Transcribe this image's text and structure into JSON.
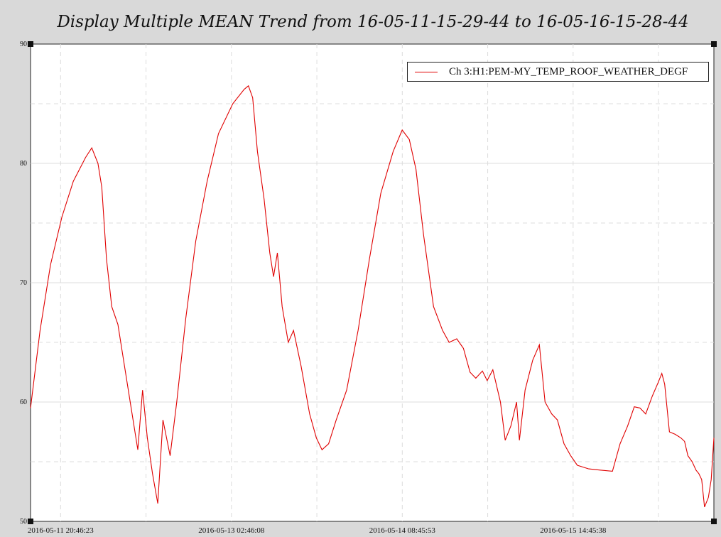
{
  "chart_data": {
    "type": "line",
    "title": "Display Multiple MEAN Trend from 16-05-11-15-29-44 to 16-05-16-15-28-44",
    "xlabel": "",
    "ylabel": "",
    "xlim": [
      "2016-05-11 15:29:44",
      "2016-05-16 15:28:44"
    ],
    "ylim": [
      50,
      90
    ],
    "y_ticks": [
      "50",
      "60",
      "70",
      "80",
      "90"
    ],
    "x_ticks": [
      {
        "label": "2016-05-11 20:46:23",
        "t": "2016-05-11 20:46:23"
      },
      {
        "label": "2016-05-13 02:46:08",
        "t": "2016-05-13 02:46:08"
      },
      {
        "label": "2016-05-14 08:45:53",
        "t": "2016-05-14 08:45:53"
      },
      {
        "label": "2016-05-15 14:45:38",
        "t": "2016-05-15 14:45:38"
      }
    ],
    "grid": true,
    "legend_position": "top-right",
    "series": [
      {
        "name": "Ch 3:H1:PEM-MY_TEMP_ROOF_WEATHER_DEGF",
        "color": "#e00000",
        "points": [
          [
            "2016-05-11 15:29:44",
            59.5
          ],
          [
            "2016-05-11 17:10:00",
            66.0
          ],
          [
            "2016-05-11 19:00:00",
            71.5
          ],
          [
            "2016-05-11 21:00:00",
            75.5
          ],
          [
            "2016-05-11 23:00:00",
            78.5
          ],
          [
            "2016-05-12 01:10:00",
            80.5
          ],
          [
            "2016-05-12 02:15:00",
            81.3
          ],
          [
            "2016-05-12 03:20:00",
            80.0
          ],
          [
            "2016-05-12 04:00:00",
            78.0
          ],
          [
            "2016-05-12 04:50:00",
            72.0
          ],
          [
            "2016-05-12 05:45:00",
            68.0
          ],
          [
            "2016-05-12 06:50:00",
            66.5
          ],
          [
            "2016-05-12 08:00:00",
            63.0
          ],
          [
            "2016-05-12 09:00:00",
            60.0
          ],
          [
            "2016-05-12 10:20:00",
            56.0
          ],
          [
            "2016-05-12 11:10:00",
            61.0
          ],
          [
            "2016-05-12 12:00:00",
            57.0
          ],
          [
            "2016-05-12 12:55:00",
            54.0
          ],
          [
            "2016-05-12 13:50:00",
            51.5
          ],
          [
            "2016-05-12 14:45:00",
            58.5
          ],
          [
            "2016-05-12 16:00:00",
            55.5
          ],
          [
            "2016-05-12 17:10:00",
            60.0
          ],
          [
            "2016-05-12 18:45:00",
            67.0
          ],
          [
            "2016-05-12 20:30:00",
            73.5
          ],
          [
            "2016-05-12 22:30:00",
            78.5
          ],
          [
            "2016-05-13 00:30:00",
            82.5
          ],
          [
            "2016-05-13 03:00:00",
            85.0
          ],
          [
            "2016-05-13 05:00:00",
            86.2
          ],
          [
            "2016-05-13 05:45:00",
            86.5
          ],
          [
            "2016-05-13 06:30:00",
            85.5
          ],
          [
            "2016-05-13 07:20:00",
            81.0
          ],
          [
            "2016-05-13 08:30:00",
            77.0
          ],
          [
            "2016-05-13 09:30:00",
            72.5
          ],
          [
            "2016-05-13 10:10:00",
            70.5
          ],
          [
            "2016-05-13 10:50:00",
            72.5
          ],
          [
            "2016-05-13 11:40:00",
            68.0
          ],
          [
            "2016-05-13 12:45:00",
            65.0
          ],
          [
            "2016-05-13 13:40:00",
            66.0
          ],
          [
            "2016-05-13 15:00:00",
            63.0
          ],
          [
            "2016-05-13 16:30:00",
            59.0
          ],
          [
            "2016-05-13 17:40:00",
            57.0
          ],
          [
            "2016-05-13 18:40:00",
            56.0
          ],
          [
            "2016-05-13 19:50:00",
            56.5
          ],
          [
            "2016-05-13 21:10:00",
            58.5
          ],
          [
            "2016-05-13 23:00:00",
            61.0
          ],
          [
            "2016-05-14 01:00:00",
            66.0
          ],
          [
            "2016-05-14 03:00:00",
            72.0
          ],
          [
            "2016-05-14 05:00:00",
            77.5
          ],
          [
            "2016-05-14 07:10:00",
            81.0
          ],
          [
            "2016-05-14 08:45:00",
            82.8
          ],
          [
            "2016-05-14 10:00:00",
            82.0
          ],
          [
            "2016-05-14 11:10:00",
            79.5
          ],
          [
            "2016-05-14 12:30:00",
            74.0
          ],
          [
            "2016-05-14 14:15:00",
            68.0
          ],
          [
            "2016-05-14 15:50:00",
            66.0
          ],
          [
            "2016-05-14 17:00:00",
            65.0
          ],
          [
            "2016-05-14 18:20:00",
            65.3
          ],
          [
            "2016-05-14 19:30:00",
            64.5
          ],
          [
            "2016-05-14 20:40:00",
            62.5
          ],
          [
            "2016-05-14 21:40:00",
            62.0
          ],
          [
            "2016-05-14 22:50:00",
            62.6
          ],
          [
            "2016-05-14 23:40:00",
            61.8
          ],
          [
            "2016-05-15 00:40:00",
            62.7
          ],
          [
            "2016-05-15 02:00:00",
            60.0
          ],
          [
            "2016-05-15 02:50:00",
            56.8
          ],
          [
            "2016-05-15 03:50:00",
            58.0
          ],
          [
            "2016-05-15 04:50:00",
            60.0
          ],
          [
            "2016-05-15 05:20:00",
            56.8
          ],
          [
            "2016-05-15 06:20:00",
            61.0
          ],
          [
            "2016-05-15 07:40:00",
            63.5
          ],
          [
            "2016-05-15 08:50:00",
            64.8
          ],
          [
            "2016-05-15 09:50:00",
            60.0
          ],
          [
            "2016-05-15 11:00:00",
            59.0
          ],
          [
            "2016-05-15 12:00:00",
            58.5
          ],
          [
            "2016-05-15 13:10:00",
            56.5
          ],
          [
            "2016-05-15 14:20:00",
            55.5
          ],
          [
            "2016-05-15 15:30:00",
            54.7
          ],
          [
            "2016-05-15 17:30:00",
            54.4
          ],
          [
            "2016-05-15 19:30:00",
            54.3
          ],
          [
            "2016-05-15 21:40:00",
            54.2
          ],
          [
            "2016-05-15 23:00:00",
            56.5
          ],
          [
            "2016-05-16 00:20:00",
            58.0
          ],
          [
            "2016-05-16 01:30:00",
            59.6
          ],
          [
            "2016-05-16 02:30:00",
            59.5
          ],
          [
            "2016-05-16 03:30:00",
            59.0
          ],
          [
            "2016-05-16 04:40:00",
            60.5
          ],
          [
            "2016-05-16 05:40:00",
            61.6
          ],
          [
            "2016-05-16 06:20:00",
            62.4
          ],
          [
            "2016-05-16 06:50:00",
            61.5
          ],
          [
            "2016-05-16 07:40:00",
            57.5
          ],
          [
            "2016-05-16 08:40:00",
            57.3
          ],
          [
            "2016-05-16 09:40:00",
            57.0
          ],
          [
            "2016-05-16 10:20:00",
            56.7
          ],
          [
            "2016-05-16 10:55:00",
            55.5
          ],
          [
            "2016-05-16 11:40:00",
            55.0
          ],
          [
            "2016-05-16 12:20:00",
            54.3
          ],
          [
            "2016-05-16 12:50:00",
            54.0
          ],
          [
            "2016-05-16 13:20:00",
            53.5
          ],
          [
            "2016-05-16 13:50:00",
            51.2
          ],
          [
            "2016-05-16 14:30:00",
            52.0
          ],
          [
            "2016-05-16 15:00:00",
            53.5
          ],
          [
            "2016-05-16 15:28:44",
            57.0
          ]
        ]
      }
    ]
  }
}
